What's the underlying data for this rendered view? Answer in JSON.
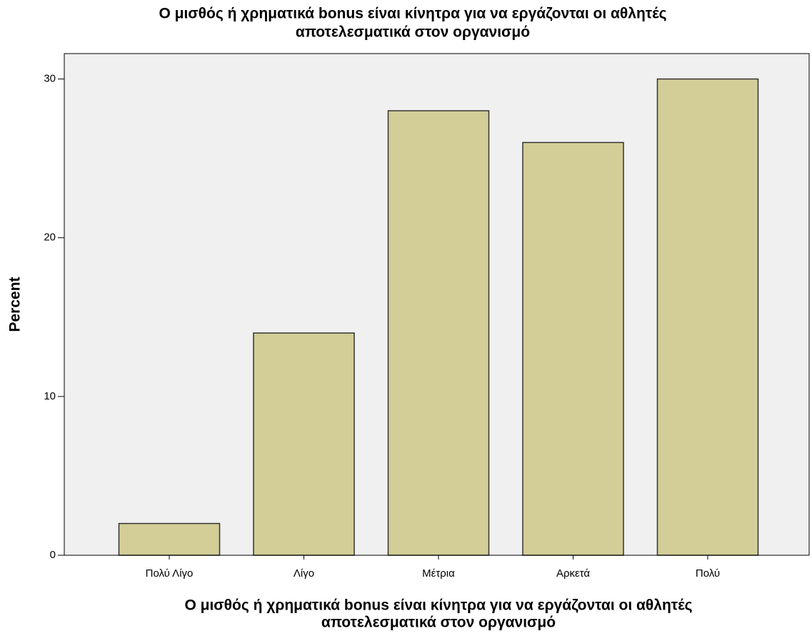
{
  "chart_data": {
    "type": "bar",
    "title": [
      "Ο μισθός ή χρηματικά bonus είναι κίνητρα για να εργάζονται οι αθλητές",
      "αποτελεσματικά στον οργανισμό"
    ],
    "x_label": [
      "Ο μισθός ή χρηματικά bonus είναι κίνητρα για να εργάζονται οι αθλητές",
      "αποτελεσματικά στον οργανισμό"
    ],
    "y_label": "Percent",
    "categories": [
      "Πολύ Λίγο",
      "Λίγο",
      "Μέτρια",
      "Αρκετά",
      "Πολύ"
    ],
    "values": [
      2,
      14,
      28,
      26,
      30
    ],
    "color": "#d3ce97",
    "ylim": [
      0,
      31.6
    ],
    "yticks": [
      0,
      10,
      20,
      30
    ],
    "grid": false
  }
}
